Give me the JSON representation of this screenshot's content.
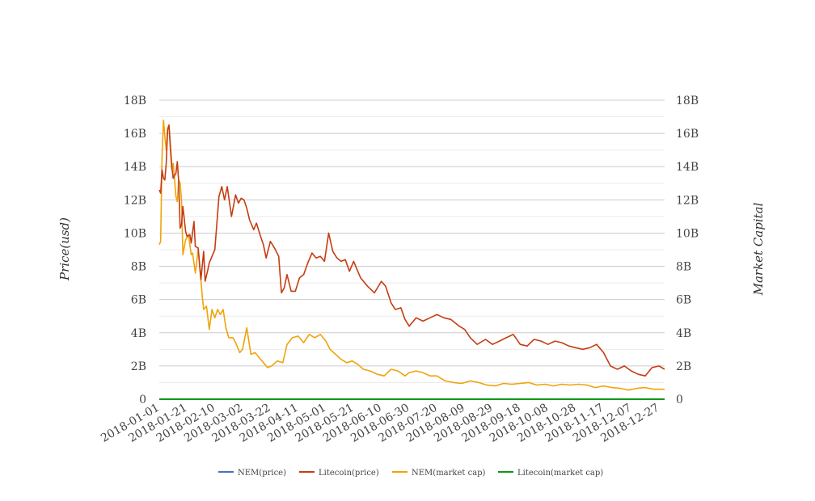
{
  "chart_data": {
    "type": "line",
    "title": "",
    "ylabel_left": "Price(usd)",
    "ylabel_right": "Market Capital",
    "x_tick_labels": [
      "2018-01-01",
      "2018-01-21",
      "2018-02-10",
      "2018-03-02",
      "2018-03-22",
      "2018-04-11",
      "2018-05-01",
      "2018-05-21",
      "2018-06-10",
      "2018-06-30",
      "2018-07-20",
      "2018-08-09",
      "2018-08-29",
      "2018-09-18",
      "2018-10-08",
      "2018-10-28",
      "2018-11-17",
      "2018-12-07",
      "2018-12-27"
    ],
    "y_tick_labels": [
      "0",
      "2B",
      "4B",
      "6B",
      "8B",
      "10B",
      "12B",
      "14B",
      "16B",
      "18B"
    ],
    "ylim": [
      0,
      18000000000
    ],
    "xlim": [
      "2018-01-01",
      "2018-12-31"
    ],
    "grid": true,
    "legend_position": "bottom",
    "colors": {
      "NEM(price)": "#4472c4",
      "Litecoin(price)": "#c63c12",
      "NEM(market cap)": "#f0a30a",
      "Litecoin(market cap)": "#109618",
      "grid": "#cccccc"
    },
    "series": [
      {
        "name": "NEM(price)",
        "axis": "left",
        "x": [
          "2018-01-01",
          "2018-12-31"
        ],
        "values": [
          1.0,
          0.07
        ]
      },
      {
        "name": "Litecoin(price)",
        "axis": "right",
        "x": [
          "2018-01-01",
          "2018-01-02",
          "2018-01-03",
          "2018-01-04",
          "2018-01-05",
          "2018-01-06",
          "2018-01-07",
          "2018-01-08",
          "2018-01-10",
          "2018-01-11",
          "2018-01-13",
          "2018-01-14",
          "2018-01-15",
          "2018-01-16",
          "2018-01-17",
          "2018-01-18",
          "2018-01-20",
          "2018-01-21",
          "2018-01-23",
          "2018-01-24",
          "2018-01-26",
          "2018-01-27",
          "2018-01-29",
          "2018-01-31",
          "2018-02-02",
          "2018-02-03",
          "2018-02-05",
          "2018-02-06",
          "2018-02-08",
          "2018-02-10",
          "2018-02-13",
          "2018-02-15",
          "2018-02-17",
          "2018-02-19",
          "2018-02-22",
          "2018-02-25",
          "2018-02-27",
          "2018-03-01",
          "2018-03-03",
          "2018-03-05",
          "2018-03-07",
          "2018-03-10",
          "2018-03-12",
          "2018-03-15",
          "2018-03-17",
          "2018-03-19",
          "2018-03-22",
          "2018-03-25",
          "2018-03-28",
          "2018-03-30",
          "2018-04-01",
          "2018-04-03",
          "2018-04-06",
          "2018-04-09",
          "2018-04-12",
          "2018-04-15",
          "2018-04-18",
          "2018-04-21",
          "2018-04-24",
          "2018-04-27",
          "2018-04-30",
          "2018-05-03",
          "2018-05-06",
          "2018-05-09",
          "2018-05-12",
          "2018-05-15",
          "2018-05-18",
          "2018-05-21",
          "2018-05-26",
          "2018-05-31",
          "2018-06-05",
          "2018-06-10",
          "2018-06-13",
          "2018-06-17",
          "2018-06-20",
          "2018-06-24",
          "2018-06-27",
          "2018-06-30",
          "2018-07-05",
          "2018-07-10",
          "2018-07-15",
          "2018-07-20",
          "2018-07-25",
          "2018-07-30",
          "2018-08-05",
          "2018-08-09",
          "2018-08-13",
          "2018-08-18",
          "2018-08-24",
          "2018-08-29",
          "2018-09-03",
          "2018-09-08",
          "2018-09-13",
          "2018-09-18",
          "2018-09-23",
          "2018-09-28",
          "2018-10-03",
          "2018-10-08",
          "2018-10-13",
          "2018-10-18",
          "2018-10-23",
          "2018-10-28",
          "2018-11-02",
          "2018-11-07",
          "2018-11-12",
          "2018-11-17",
          "2018-11-22",
          "2018-11-27",
          "2018-12-02",
          "2018-12-07",
          "2018-12-12",
          "2018-12-17",
          "2018-12-22",
          "2018-12-27",
          "2018-12-31"
        ],
        "values": [
          12600000000,
          12400000000,
          13800000000,
          13300000000,
          13200000000,
          14200000000,
          16200000000,
          16500000000,
          14000000000,
          13300000000,
          13600000000,
          14300000000,
          13100000000,
          10300000000,
          10500000000,
          11600000000,
          10100000000,
          9800000000,
          9900000000,
          9400000000,
          10700000000,
          9200000000,
          9100000000,
          7200000000,
          8900000000,
          7100000000,
          7800000000,
          8200000000,
          8600000000,
          9000000000,
          12200000000,
          12800000000,
          12000000000,
          12800000000,
          11000000000,
          12300000000,
          11800000000,
          12100000000,
          12000000000,
          11500000000,
          10800000000,
          10200000000,
          10600000000,
          9800000000,
          9300000000,
          8500000000,
          9500000000,
          9100000000,
          8600000000,
          6400000000,
          6700000000,
          7500000000,
          6500000000,
          6500000000,
          7300000000,
          7500000000,
          8200000000,
          8800000000,
          8500000000,
          8600000000,
          8300000000,
          10000000000,
          8900000000,
          8500000000,
          8300000000,
          8400000000,
          7700000000,
          8300000000,
          7300000000,
          6800000000,
          6400000000,
          7100000000,
          6800000000,
          5800000000,
          5400000000,
          5500000000,
          4800000000,
          4400000000,
          4900000000,
          4700000000,
          4900000000,
          5100000000,
          4900000000,
          4800000000,
          4400000000,
          4200000000,
          3700000000,
          3300000000,
          3600000000,
          3300000000,
          3500000000,
          3700000000,
          3900000000,
          3300000000,
          3200000000,
          3600000000,
          3500000000,
          3300000000,
          3500000000,
          3400000000,
          3200000000,
          3100000000,
          3000000000,
          3100000000,
          3300000000,
          2800000000,
          2000000000,
          1800000000,
          2000000000,
          1700000000,
          1500000000,
          1400000000,
          1900000000,
          2000000000,
          1800000000
        ]
      },
      {
        "name": "NEM(market cap)",
        "axis": "right",
        "x": [
          "2018-01-01",
          "2018-01-02",
          "2018-01-03",
          "2018-01-04",
          "2018-01-05",
          "2018-01-06",
          "2018-01-07",
          "2018-01-08",
          "2018-01-09",
          "2018-01-10",
          "2018-01-11",
          "2018-01-13",
          "2018-01-14",
          "2018-01-15",
          "2018-01-16",
          "2018-01-17",
          "2018-01-18",
          "2018-01-20",
          "2018-01-22",
          "2018-01-24",
          "2018-01-25",
          "2018-01-27",
          "2018-01-29",
          "2018-01-30",
          "2018-02-01",
          "2018-02-02",
          "2018-02-04",
          "2018-02-06",
          "2018-02-08",
          "2018-02-10",
          "2018-02-12",
          "2018-02-14",
          "2018-02-16",
          "2018-02-18",
          "2018-02-20",
          "2018-02-23",
          "2018-02-25",
          "2018-02-28",
          "2018-03-02",
          "2018-03-05",
          "2018-03-08",
          "2018-03-11",
          "2018-03-14",
          "2018-03-17",
          "2018-03-20",
          "2018-03-23",
          "2018-03-27",
          "2018-03-31",
          "2018-04-03",
          "2018-04-07",
          "2018-04-11",
          "2018-04-15",
          "2018-04-19",
          "2018-04-23",
          "2018-04-27",
          "2018-05-01",
          "2018-05-04",
          "2018-05-08",
          "2018-05-12",
          "2018-05-16",
          "2018-05-20",
          "2018-05-24",
          "2018-05-28",
          "2018-06-02",
          "2018-06-07",
          "2018-06-12",
          "2018-06-17",
          "2018-06-22",
          "2018-06-27",
          "2018-06-30",
          "2018-07-05",
          "2018-07-10",
          "2018-07-15",
          "2018-07-20",
          "2018-07-26",
          "2018-08-01",
          "2018-08-07",
          "2018-08-13",
          "2018-08-19",
          "2018-08-25",
          "2018-08-31",
          "2018-09-06",
          "2018-09-12",
          "2018-09-18",
          "2018-09-24",
          "2018-09-30",
          "2018-10-06",
          "2018-10-12",
          "2018-10-18",
          "2018-10-24",
          "2018-10-30",
          "2018-11-05",
          "2018-11-11",
          "2018-11-17",
          "2018-11-23",
          "2018-11-29",
          "2018-12-05",
          "2018-12-11",
          "2018-12-17",
          "2018-12-23",
          "2018-12-31"
        ],
        "values": [
          9300000000,
          9500000000,
          14600000000,
          16800000000,
          15800000000,
          15000000000,
          16300000000,
          16500000000,
          15000000000,
          13800000000,
          14200000000,
          12200000000,
          11900000000,
          13200000000,
          13000000000,
          12000000000,
          8700000000,
          9600000000,
          9900000000,
          8700000000,
          8800000000,
          7600000000,
          9000000000,
          8100000000,
          6200000000,
          5400000000,
          5600000000,
          4200000000,
          5400000000,
          4900000000,
          5400000000,
          5100000000,
          5400000000,
          4300000000,
          3700000000,
          3700000000,
          3400000000,
          2800000000,
          3000000000,
          4300000000,
          2700000000,
          2800000000,
          2500000000,
          2200000000,
          1900000000,
          2000000000,
          2300000000,
          2200000000,
          3300000000,
          3700000000,
          3800000000,
          3400000000,
          3900000000,
          3700000000,
          3900000000,
          3500000000,
          3000000000,
          2700000000,
          2400000000,
          2200000000,
          2300000000,
          2100000000,
          1800000000,
          1700000000,
          1500000000,
          1400000000,
          1800000000,
          1700000000,
          1400000000,
          1600000000,
          1700000000,
          1600000000,
          1400000000,
          1400000000,
          1100000000,
          1000000000,
          950000000,
          1100000000,
          1000000000,
          850000000,
          800000000,
          950000000,
          900000000,
          950000000,
          1000000000,
          850000000,
          900000000,
          800000000,
          900000000,
          850000000,
          900000000,
          850000000,
          700000000,
          800000000,
          700000000,
          650000000,
          550000000,
          650000000,
          700000000,
          600000000,
          600000000
        ]
      },
      {
        "name": "Litecoin(market cap)",
        "axis": "right",
        "x": [
          "2018-01-01",
          "2018-12-31"
        ],
        "values": [
          0,
          0
        ]
      }
    ]
  }
}
